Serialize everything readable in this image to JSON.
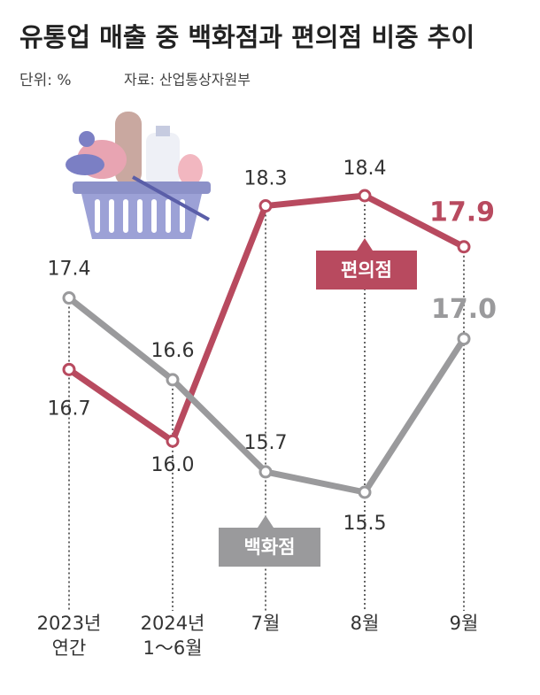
{
  "chart_data": {
    "type": "line",
    "title": "유통업 매출 중 백화점과 편의점 비중 추이",
    "subtitle": "단위: %",
    "source": "자료: 산업통상자원부",
    "categories": [
      "2023년\n연간",
      "2024년\n1～6월",
      "7월",
      "8월",
      "9월"
    ],
    "series": [
      {
        "name": "편의점",
        "color": "#b84a5f",
        "values": [
          16.7,
          16.0,
          18.3,
          18.4,
          17.9
        ],
        "value_labels": [
          "16.7",
          "16.0",
          "18.3",
          "18.4",
          "17.9"
        ]
      },
      {
        "name": "백화점",
        "color": "#9a9a9c",
        "values": [
          17.4,
          16.6,
          15.7,
          15.5,
          17.0
        ],
        "value_labels": [
          "17.4",
          "16.6",
          "15.7",
          "15.5",
          "17.0"
        ]
      }
    ]
  }
}
